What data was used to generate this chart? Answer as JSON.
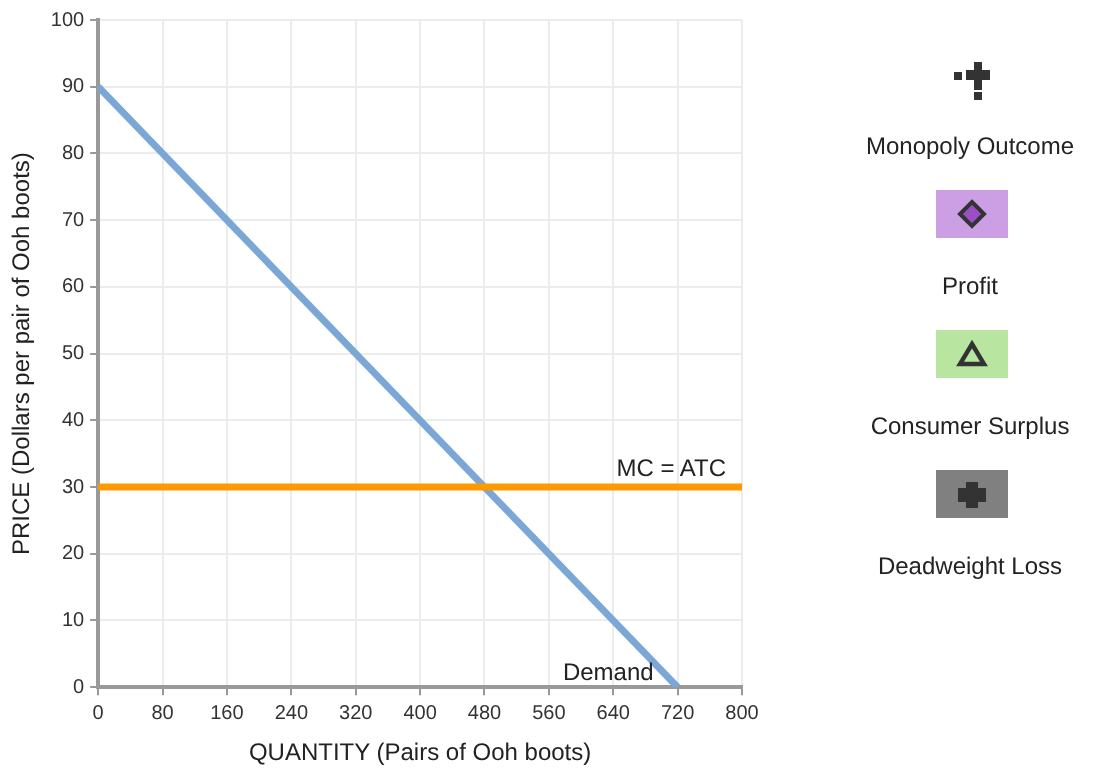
{
  "chart_data": {
    "type": "line",
    "xlabel": "QUANTITY (Pairs of Ooh boots)",
    "ylabel": "PRICE (Dollars per pair of Ooh boots)",
    "xlim": [
      0,
      800
    ],
    "xticks": [
      0,
      80,
      160,
      240,
      320,
      400,
      480,
      560,
      640,
      720,
      800
    ],
    "ylim": [
      0,
      100
    ],
    "yticks": [
      0,
      10,
      20,
      30,
      40,
      50,
      60,
      70,
      80,
      90,
      100
    ],
    "series": [
      {
        "name": "Demand",
        "color": "#7aa7d6",
        "x": [
          0,
          720
        ],
        "values": [
          90,
          0
        ]
      }
    ],
    "ref_lines": [
      {
        "axis": "y",
        "value": 30,
        "label": "MC = ATC",
        "color": "#ff9900"
      }
    ],
    "grid": true,
    "legend": false,
    "marker": "none",
    "annotations": [
      "Monopoly Outcome",
      "Profit",
      "Consumer Surplus",
      "Deadweight Loss"
    ]
  }
}
